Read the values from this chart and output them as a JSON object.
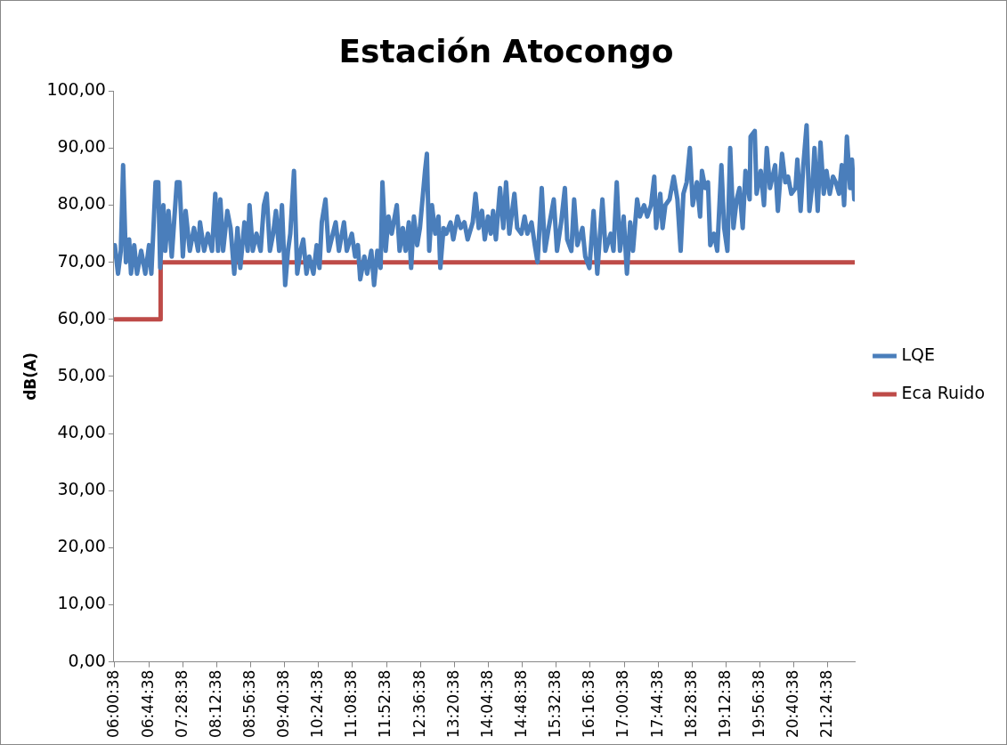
{
  "chart_data": {
    "type": "line",
    "title": "Estación Atocongo",
    "ylabel": "dB(A)",
    "xlim": [
      5.99,
      21.99
    ],
    "xticks": [
      {
        "value": 6.0106,
        "label": "06:00:38"
      },
      {
        "value": 6.7439,
        "label": "06:44:38"
      },
      {
        "value": 7.4772,
        "label": "07:28:38"
      },
      {
        "value": 8.2106,
        "label": "08:12:38"
      },
      {
        "value": 8.9439,
        "label": "08:56:38"
      },
      {
        "value": 9.6772,
        "label": "09:40:38"
      },
      {
        "value": 10.4106,
        "label": "10:24:38"
      },
      {
        "value": 11.1439,
        "label": "11:08:38"
      },
      {
        "value": 11.8772,
        "label": "11:52:38"
      },
      {
        "value": 12.6106,
        "label": "12:36:38"
      },
      {
        "value": 13.3439,
        "label": "13:20:38"
      },
      {
        "value": 14.0772,
        "label": "14:04:38"
      },
      {
        "value": 14.8106,
        "label": "14:48:38"
      },
      {
        "value": 15.5439,
        "label": "15:32:38"
      },
      {
        "value": 16.2772,
        "label": "16:16:38"
      },
      {
        "value": 17.0106,
        "label": "17:00:38"
      },
      {
        "value": 17.7439,
        "label": "17:44:38"
      },
      {
        "value": 18.4772,
        "label": "18:28:38"
      },
      {
        "value": 19.2106,
        "label": "19:12:38"
      },
      {
        "value": 19.9439,
        "label": "19:56:38"
      },
      {
        "value": 20.6772,
        "label": "20:40:38"
      },
      {
        "value": 21.4106,
        "label": "21:24:38"
      }
    ],
    "ylim": [
      0,
      100
    ],
    "yticks": [
      {
        "value": 0,
        "label": "0,00"
      },
      {
        "value": 10,
        "label": "10,00"
      },
      {
        "value": 20,
        "label": "20,00"
      },
      {
        "value": 30,
        "label": "30,00"
      },
      {
        "value": 40,
        "label": "40,00"
      },
      {
        "value": 50,
        "label": "50,00"
      },
      {
        "value": 60,
        "label": "60,00"
      },
      {
        "value": 70,
        "label": "70,00"
      },
      {
        "value": 80,
        "label": "80,00"
      },
      {
        "value": 90,
        "label": "90,00"
      },
      {
        "value": 100,
        "label": "100,00"
      }
    ],
    "grid": false,
    "legend": "right",
    "marker": "none",
    "line_style": "solid",
    "series": [
      {
        "name": "LQE",
        "color": "#4a7ebb",
        "type": "line",
        "x": [
          6.01,
          6.08,
          6.14,
          6.19,
          6.25,
          6.32,
          6.36,
          6.43,
          6.49,
          6.58,
          6.67,
          6.75,
          6.8,
          6.84,
          6.89,
          6.95,
          6.99,
          7.06,
          7.1,
          7.17,
          7.24,
          7.35,
          7.41,
          7.48,
          7.54,
          7.63,
          7.72,
          7.81,
          7.85,
          7.94,
          8.02,
          8.11,
          8.18,
          8.24,
          8.29,
          8.35,
          8.44,
          8.51,
          8.59,
          8.66,
          8.72,
          8.81,
          8.88,
          8.92,
          8.99,
          9.07,
          9.16,
          9.23,
          9.29,
          9.36,
          9.43,
          9.49,
          9.56,
          9.62,
          9.69,
          9.75,
          9.8,
          9.88,
          9.95,
          10.02,
          10.08,
          10.15,
          10.21,
          10.3,
          10.37,
          10.43,
          10.48,
          10.56,
          10.63,
          10.72,
          10.78,
          10.85,
          10.96,
          11.02,
          11.13,
          11.2,
          11.26,
          11.31,
          11.4,
          11.46,
          11.55,
          11.61,
          11.68,
          11.75,
          11.79,
          11.86,
          11.92,
          11.99,
          12.1,
          12.16,
          12.23,
          12.29,
          12.36,
          12.41,
          12.47,
          12.54,
          12.6,
          12.71,
          12.75,
          12.8,
          12.86,
          12.93,
          13.0,
          13.04,
          13.11,
          13.17,
          13.26,
          13.32,
          13.41,
          13.48,
          13.56,
          13.63,
          13.74,
          13.8,
          13.87,
          13.94,
          14.0,
          14.07,
          14.13,
          14.18,
          14.24,
          14.33,
          14.4,
          14.46,
          14.53,
          14.64,
          14.7,
          14.79,
          14.86,
          14.92,
          15.01,
          15.08,
          15.14,
          15.23,
          15.3,
          15.38,
          15.49,
          15.56,
          15.65,
          15.73,
          15.78,
          15.87,
          15.93,
          16.0,
          16.11,
          16.17,
          16.26,
          16.35,
          16.43,
          16.54,
          16.61,
          16.72,
          16.78,
          16.85,
          16.92,
          17.0,
          17.07,
          17.14,
          17.2,
          17.29,
          17.35,
          17.44,
          17.51,
          17.59,
          17.66,
          17.7,
          17.79,
          17.84,
          17.9,
          17.99,
          18.08,
          18.16,
          18.23,
          18.29,
          18.36,
          18.43,
          18.49,
          18.58,
          18.65,
          18.69,
          18.76,
          18.82,
          18.87,
          18.95,
          19.02,
          19.11,
          19.17,
          19.24,
          19.3,
          19.37,
          19.44,
          19.5,
          19.57,
          19.63,
          19.72,
          19.74,
          19.83,
          19.87,
          19.96,
          20.03,
          20.09,
          20.16,
          20.27,
          20.33,
          20.42,
          20.49,
          20.55,
          20.62,
          20.71,
          20.75,
          20.82,
          20.88,
          20.95,
          21.01,
          21.08,
          21.12,
          21.19,
          21.25,
          21.32,
          21.38,
          21.45,
          21.52,
          21.58,
          21.65,
          21.71,
          21.76,
          21.82,
          21.89,
          21.93,
          21.98
        ],
        "values": [
          73,
          68,
          72,
          87,
          70,
          74,
          68,
          73,
          68,
          72,
          68,
          73,
          68,
          75,
          84,
          84,
          69,
          80,
          72,
          79,
          71,
          84,
          84,
          71,
          79,
          72,
          76,
          72,
          77,
          72,
          75,
          72,
          82,
          72,
          81,
          72,
          79,
          76,
          68,
          76,
          69,
          77,
          72,
          80,
          72,
          75,
          72,
          80,
          82,
          72,
          75,
          79,
          72,
          80,
          66,
          72,
          75,
          86,
          68,
          72,
          74,
          68,
          71,
          68,
          73,
          69,
          77,
          81,
          72,
          75,
          77,
          72,
          77,
          72,
          75,
          71,
          73,
          67,
          71,
          68,
          72,
          66,
          72,
          69,
          84,
          72,
          78,
          75,
          80,
          72,
          76,
          72,
          77,
          69,
          78,
          73,
          76,
          86,
          89,
          72,
          80,
          75,
          78,
          69,
          76,
          75,
          77,
          74,
          78,
          76,
          77,
          74,
          77,
          82,
          76,
          79,
          74,
          78,
          75,
          79,
          74,
          83,
          76,
          84,
          75,
          82,
          76,
          75,
          78,
          75,
          77,
          73,
          70,
          83,
          72,
          76,
          81,
          72,
          77,
          83,
          74,
          72,
          81,
          73,
          76,
          71,
          69,
          79,
          68,
          81,
          72,
          75,
          72,
          84,
          72,
          78,
          68,
          77,
          72,
          81,
          78,
          80,
          78,
          80,
          85,
          76,
          82,
          76,
          80,
          81,
          85,
          81,
          72,
          82,
          84,
          90,
          80,
          84,
          78,
          86,
          83,
          84,
          73,
          75,
          72,
          87,
          76,
          72,
          90,
          76,
          81,
          83,
          76,
          86,
          81,
          92,
          93,
          82,
          86,
          80,
          90,
          83,
          87,
          79,
          89,
          84,
          85,
          82,
          83,
          88,
          79,
          87,
          94,
          79,
          84,
          90,
          79,
          91,
          82,
          86,
          82,
          85,
          84,
          82,
          87,
          80,
          92,
          83,
          88,
          81
        ]
      },
      {
        "name": "Eca Ruido",
        "color": "#be4b48",
        "type": "step",
        "x": [
          6.01,
          7.0,
          21.98
        ],
        "values": [
          60,
          70,
          70
        ]
      }
    ]
  }
}
